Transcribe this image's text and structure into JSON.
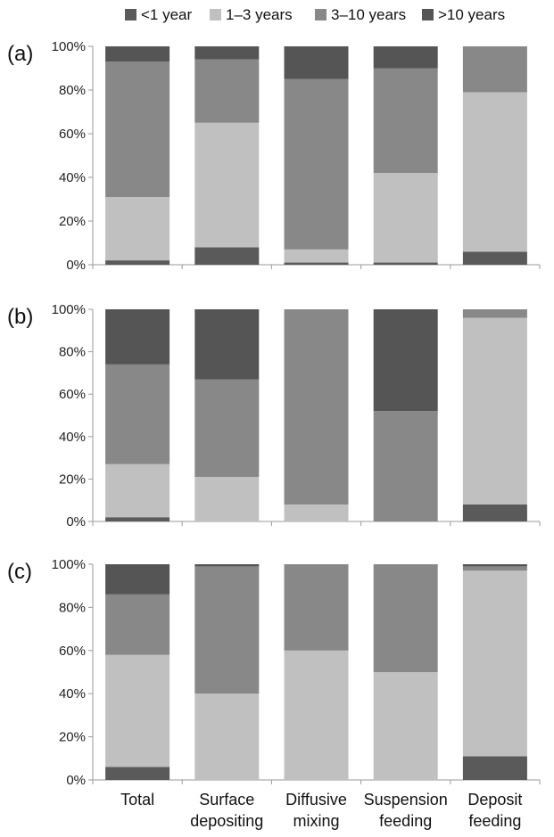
{
  "colors": {
    "<1 year": "#5a5a5a",
    "1-3 years": "#c0c0c0",
    "3-10 years": "#888888",
    ">10 years": "#555555",
    "axis": "#9a9a9a",
    "tick_text": "#222222"
  },
  "chart_data": {
    "type": "bar",
    "stacked": true,
    "grid": false,
    "legend_position": "top",
    "legend": [
      "<1 year",
      "1–3 years",
      "3–10 years",
      ">10 years"
    ],
    "categories": [
      "Total",
      "Surface depositing",
      "Diffusive mixing",
      "Suspension feeding",
      "Deposit feeding"
    ],
    "category_lines": [
      [
        "Total"
      ],
      [
        "Surface",
        "depositing"
      ],
      [
        "Diffusive",
        "mixing"
      ],
      [
        "Suspension",
        "feeding"
      ],
      [
        "Deposit",
        "feeding"
      ]
    ],
    "ylim": [
      0,
      100
    ],
    "yticks": [
      "0%",
      "20%",
      "40%",
      "60%",
      "80%",
      "100%"
    ],
    "panels": [
      {
        "label": "(a)",
        "series": [
          {
            "name": "<1 year",
            "values": [
              2,
              8,
              1,
              1,
              6
            ]
          },
          {
            "name": "1–3 years",
            "values": [
              29,
              57,
              6,
              41,
              73
            ]
          },
          {
            "name": "3–10 years",
            "values": [
              62,
              29,
              78,
              48,
              21
            ]
          },
          {
            "name": ">10 years",
            "values": [
              7,
              6,
              15,
              10,
              0
            ]
          }
        ]
      },
      {
        "label": "(b)",
        "series": [
          {
            "name": "<1 year",
            "values": [
              2,
              0,
              0,
              0,
              8
            ]
          },
          {
            "name": "1–3 years",
            "values": [
              25,
              21,
              8,
              0,
              88
            ]
          },
          {
            "name": "3–10 years",
            "values": [
              47,
              46,
              92,
              52,
              4
            ]
          },
          {
            "name": ">10 years",
            "values": [
              26,
              33,
              0,
              48,
              0
            ]
          }
        ]
      },
      {
        "label": "(c)",
        "series": [
          {
            "name": "<1 year",
            "values": [
              6,
              0,
              0,
              0,
              11
            ]
          },
          {
            "name": "1–3 years",
            "values": [
              52,
              40,
              60,
              50,
              86
            ]
          },
          {
            "name": "3–10 years",
            "values": [
              28,
              59,
              40,
              50,
              2
            ]
          },
          {
            "name": ">10 years",
            "values": [
              14,
              1,
              0,
              0,
              1
            ]
          }
        ]
      }
    ]
  }
}
